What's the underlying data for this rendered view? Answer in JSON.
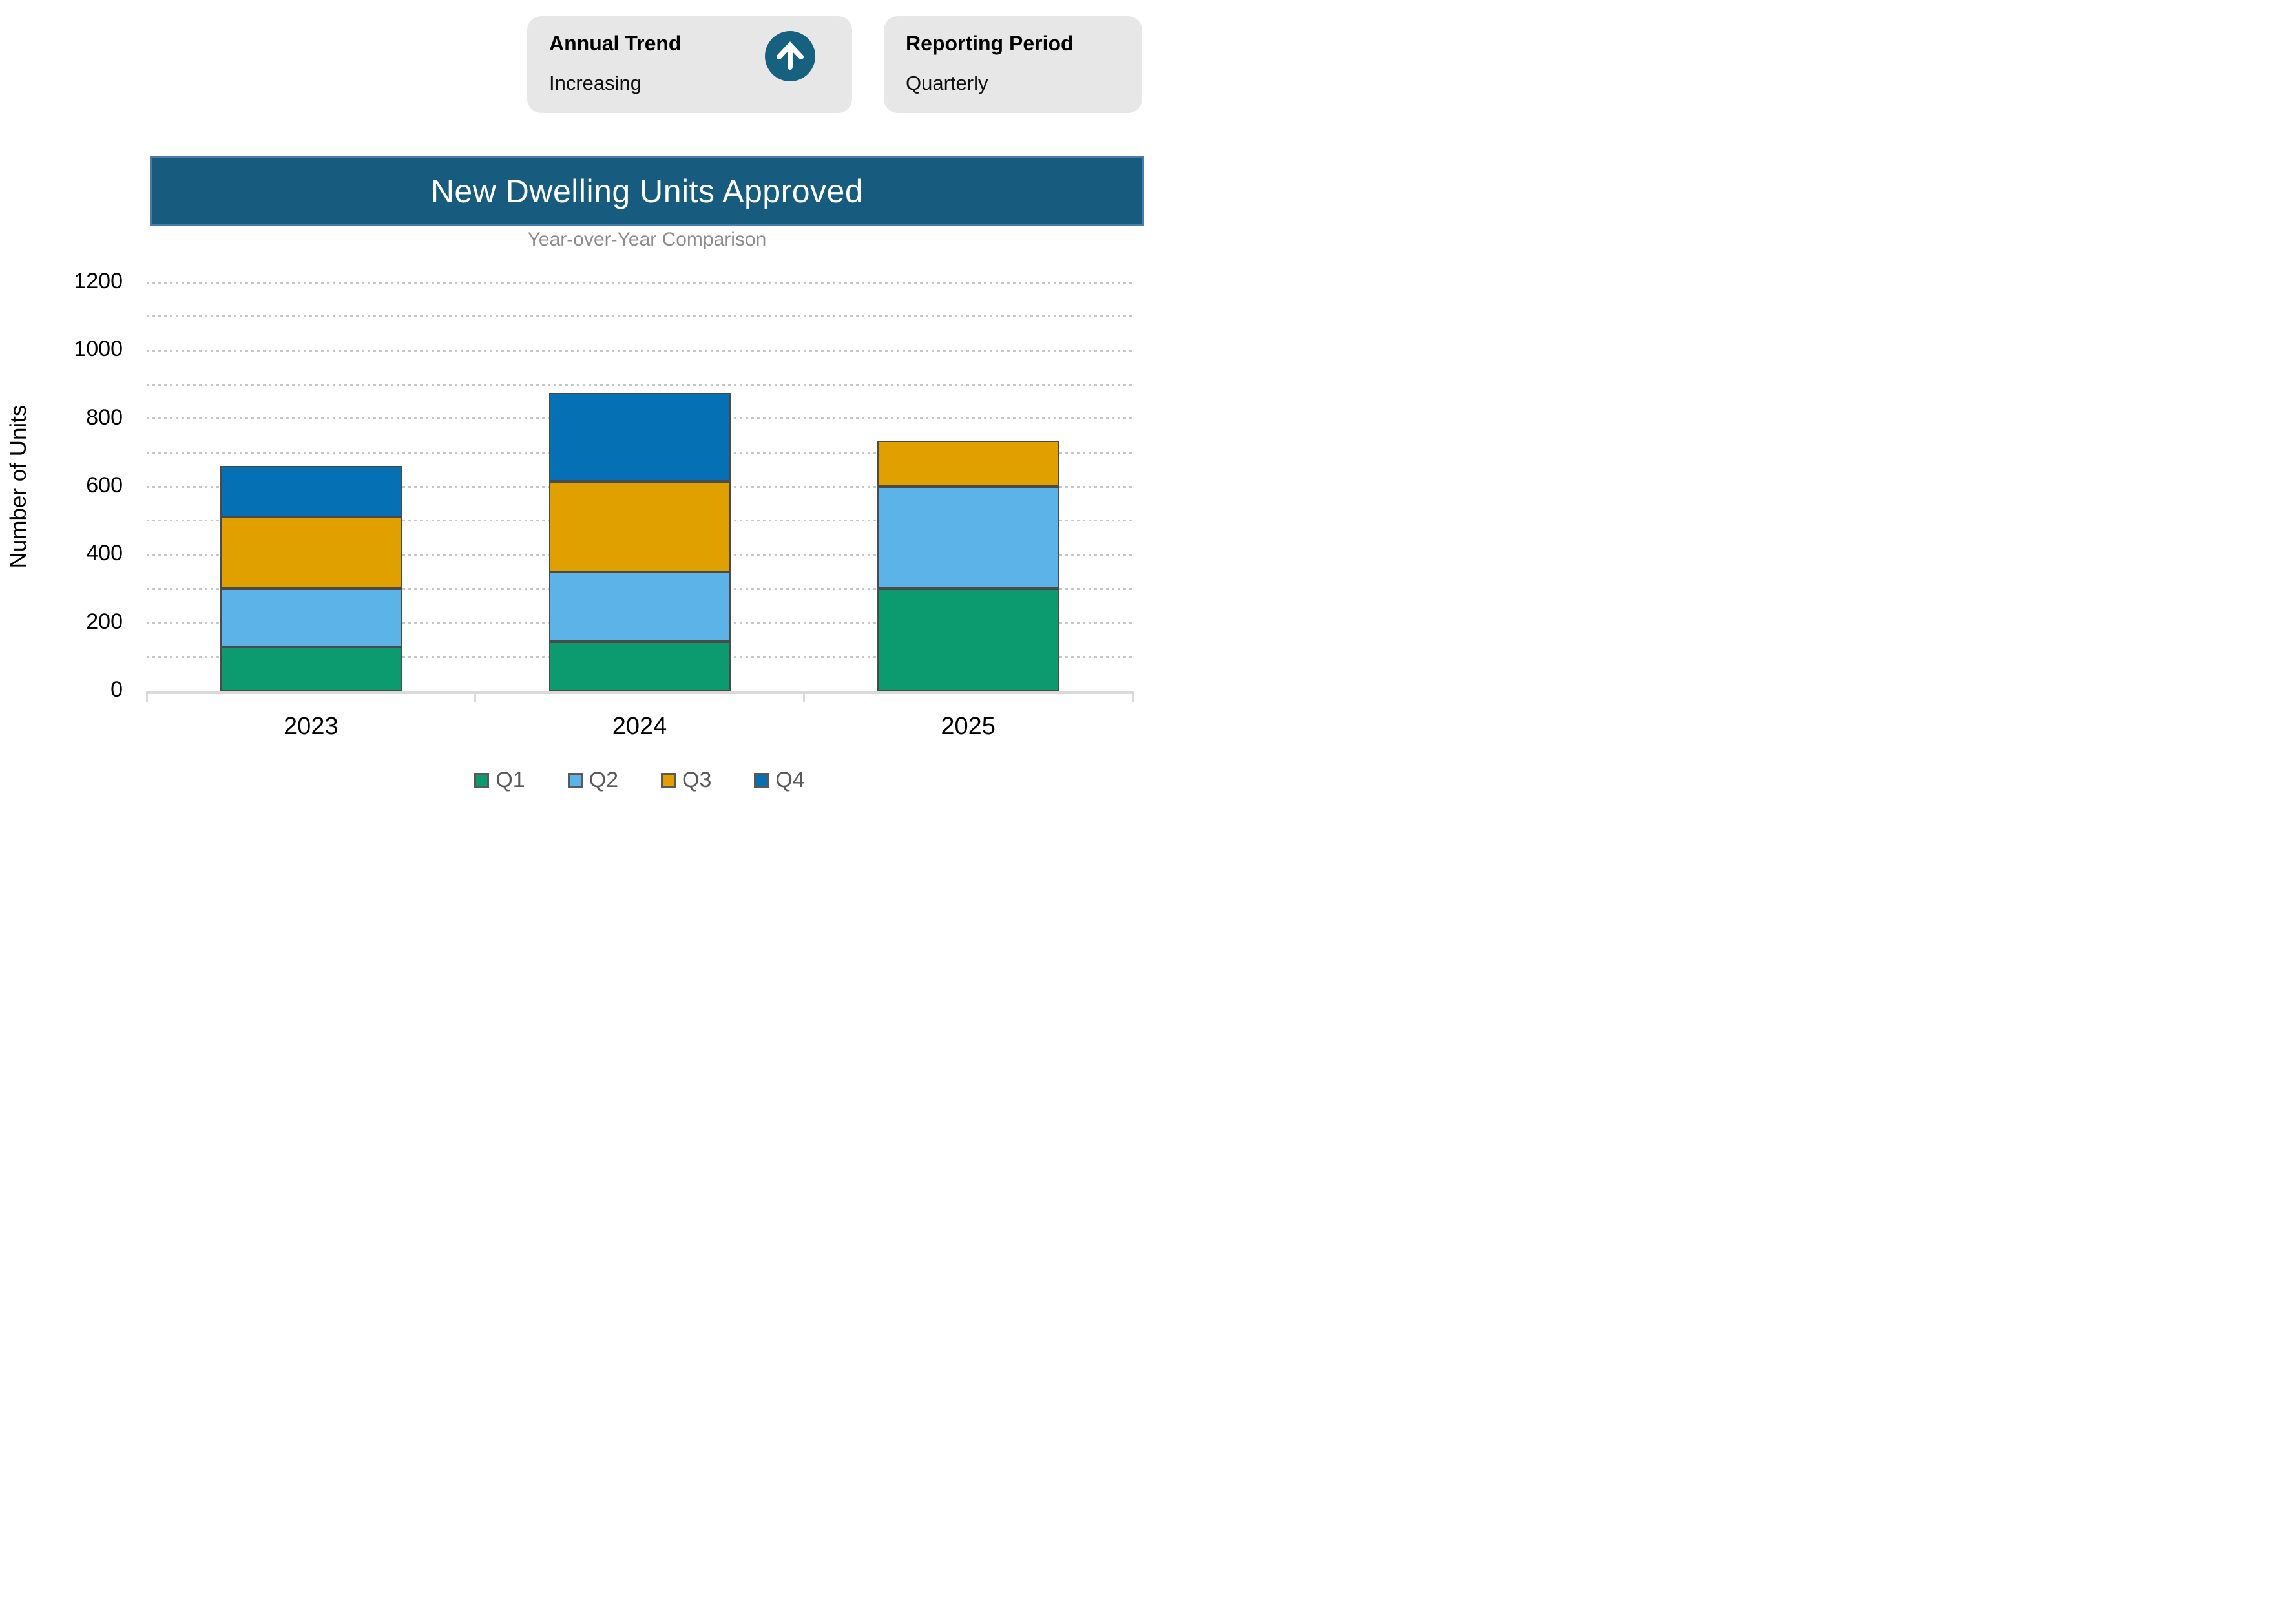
{
  "cards": [
    {
      "title": "Annual Trend",
      "value": "Increasing",
      "icon": "circle-arrow-up-icon"
    },
    {
      "title": "Reporting Period",
      "value": "Quarterly"
    }
  ],
  "chart_data": {
    "type": "bar",
    "stacked": true,
    "title": "New Dwelling Units Approved",
    "subtitle": "Year-over-Year Comparison",
    "xlabel": "",
    "ylabel": "Number of Units",
    "ylim": [
      0,
      1200
    ],
    "ytick_step": 200,
    "gridline_step": 100,
    "grid": "dotted horizontal",
    "legend_position": "bottom",
    "categories": [
      "2023",
      "2024",
      "2025"
    ],
    "series": [
      {
        "name": "Q1",
        "color": "#0B9B6E",
        "values": [
          130,
          145,
          300
        ]
      },
      {
        "name": "Q2",
        "color": "#5BB3E8",
        "values": [
          170,
          205,
          300
        ]
      },
      {
        "name": "Q3",
        "color": "#E0A000",
        "values": [
          210,
          265,
          135
        ]
      },
      {
        "name": "Q4",
        "color": "#0571B4",
        "values": [
          150,
          260,
          0
        ]
      }
    ]
  },
  "colors": {
    "card_bg": "#E7E7E7",
    "icon_circle": "#166080",
    "title_bar_fill": "#175C7E",
    "title_bar_border": "#4B7BAD",
    "subtitle_text": "#8C8C8C",
    "axis_line": "#DADADA",
    "gridline": "#C6C6C6",
    "segment_border": "#4A4A4A",
    "legend_text": "#595959"
  }
}
